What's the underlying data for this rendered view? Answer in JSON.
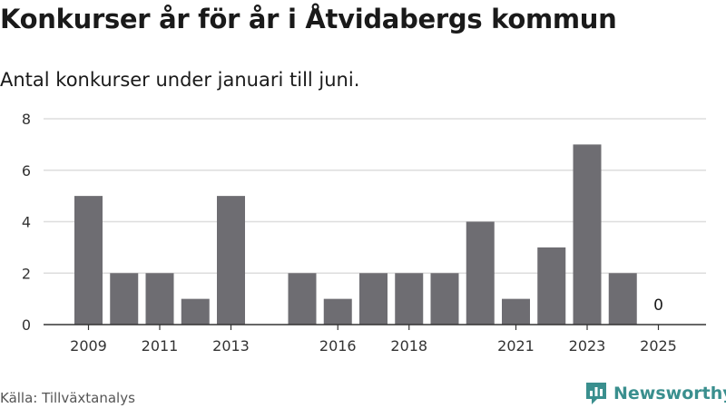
{
  "chart_data": {
    "type": "bar",
    "title": "Konkurser år för år i Åtvidabergs kommun",
    "subtitle": "Antal konkurser under januari till juni.",
    "categories": [
      "2009",
      "2010",
      "2011",
      "2012",
      "2013",
      "2014",
      "2015",
      "2016",
      "2017",
      "2018",
      "2019",
      "2020",
      "2021",
      "2022",
      "2023",
      "2024",
      "2025"
    ],
    "values": [
      5,
      2,
      2,
      1,
      5,
      null,
      2,
      1,
      2,
      2,
      2,
      4,
      1,
      3,
      7,
      2,
      0
    ],
    "x_tick_labels": [
      "2009",
      "2011",
      "2013",
      "2016",
      "2018",
      "2021",
      "2023",
      "2025"
    ],
    "y_ticks": [
      0,
      2,
      4,
      6,
      8
    ],
    "ylim": [
      0,
      8
    ],
    "annotations": [
      {
        "category": "2025",
        "text": "0"
      }
    ],
    "grid": true,
    "colors": {
      "bar": "#6e6d72",
      "grid": "#dddddd",
      "axis": "#333333"
    }
  },
  "source": "Källa: Tillväxtanalys",
  "brand": {
    "name": "Newsworthy",
    "icon": "bar-chart-logo-icon",
    "color": "#3a8f8e"
  }
}
